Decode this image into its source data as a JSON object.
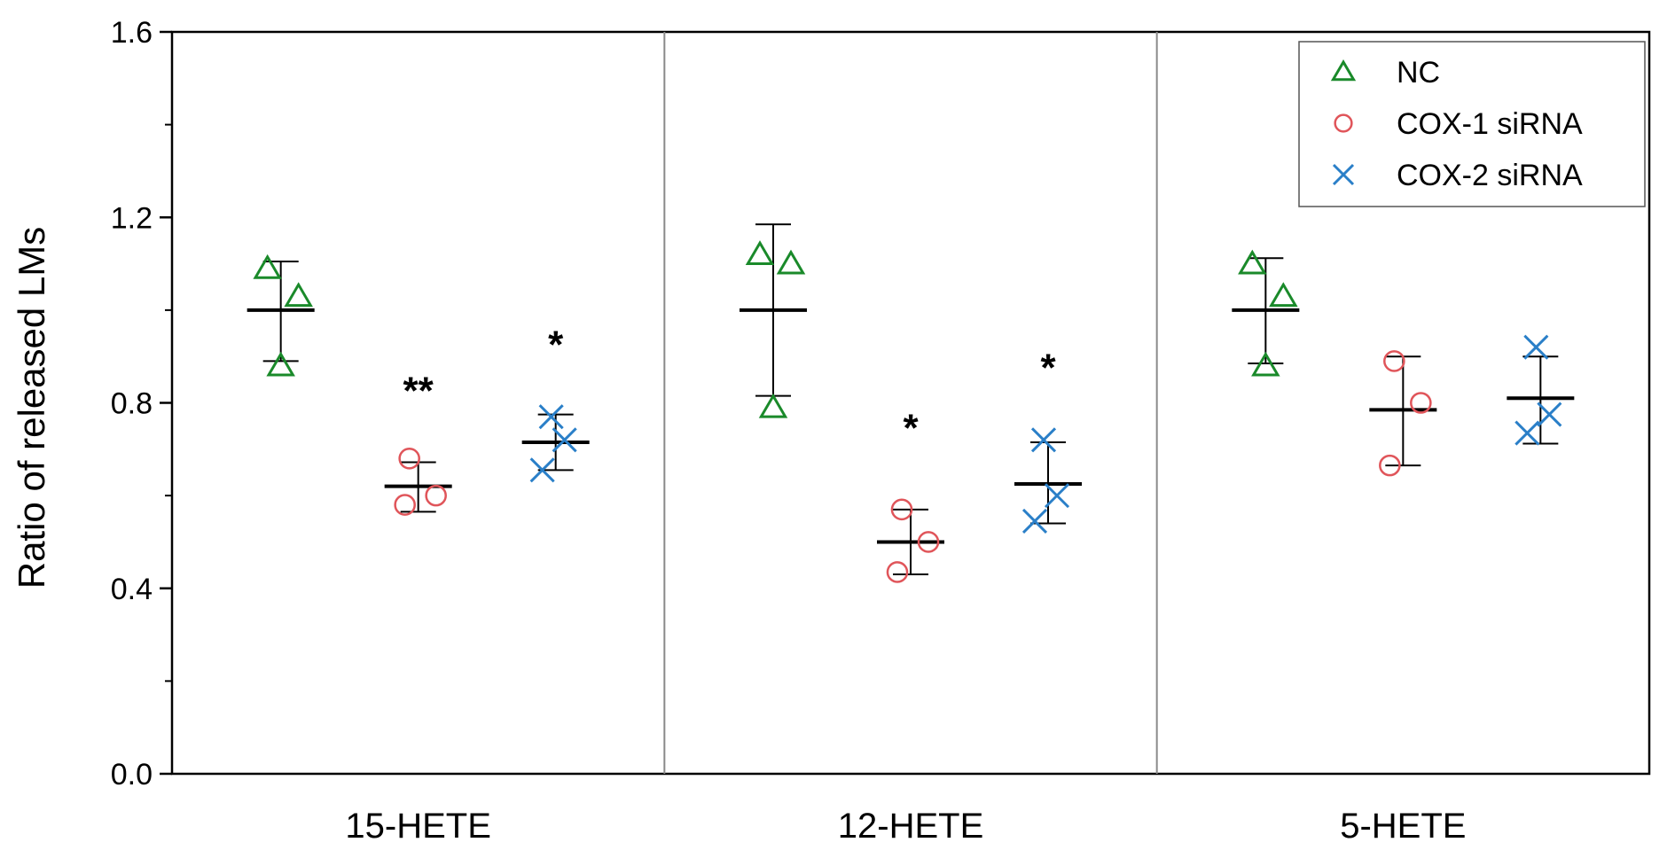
{
  "chart_data": {
    "type": "scatter",
    "title": "",
    "ylabel": "Ratio of released LMs",
    "xlabel": "",
    "ylim": [
      0.0,
      1.6
    ],
    "yticks": [
      0.0,
      0.4,
      0.8,
      1.2,
      1.6
    ],
    "y_tick_labels": [
      "0.0",
      "0.4",
      "0.8",
      "1.2",
      "1.6"
    ],
    "categories": [
      "15-HETE",
      "12-HETE",
      "5-HETE"
    ],
    "legend_position": "top-right",
    "grid": false,
    "series": [
      {
        "name": "NC",
        "marker": "triangle",
        "color": "#1a8a2a",
        "points": [
          [
            1.09,
            1.03,
            0.88
          ],
          [
            1.12,
            1.1,
            0.79
          ],
          [
            1.1,
            1.03,
            0.88
          ]
        ],
        "mean": [
          1.0,
          1.0,
          1.0
        ],
        "err_low": [
          0.89,
          0.815,
          0.885
        ],
        "err_high": [
          1.105,
          1.185,
          1.112
        ]
      },
      {
        "name": "COX-1 siRNA",
        "marker": "circle",
        "color": "#e0555a",
        "points": [
          [
            0.68,
            0.6,
            0.58
          ],
          [
            0.57,
            0.5,
            0.435
          ],
          [
            0.89,
            0.8,
            0.665
          ]
        ],
        "mean": [
          0.62,
          0.5,
          0.785
        ],
        "err_low": [
          0.565,
          0.43,
          0.665
        ],
        "err_high": [
          0.672,
          0.57,
          0.9
        ]
      },
      {
        "name": "COX-2 siRNA",
        "marker": "cross",
        "color": "#2a7fc8",
        "points": [
          [
            0.77,
            0.72,
            0.655
          ],
          [
            0.72,
            0.6,
            0.545
          ],
          [
            0.92,
            0.775,
            0.735
          ]
        ],
        "mean": [
          0.715,
          0.625,
          0.81
        ],
        "err_low": [
          0.655,
          0.54,
          0.712
        ],
        "err_high": [
          0.775,
          0.715,
          0.9
        ]
      }
    ],
    "annotations": [
      {
        "text": "**",
        "category": "15-HETE",
        "series": "COX-1 siRNA",
        "y": 0.84
      },
      {
        "text": "*",
        "category": "15-HETE",
        "series": "COX-2 siRNA",
        "y": 0.94
      },
      {
        "text": "*",
        "category": "12-HETE",
        "series": "COX-1 siRNA",
        "y": 0.76
      },
      {
        "text": "*",
        "category": "12-HETE",
        "series": "COX-2 siRNA",
        "y": 0.89
      }
    ]
  }
}
